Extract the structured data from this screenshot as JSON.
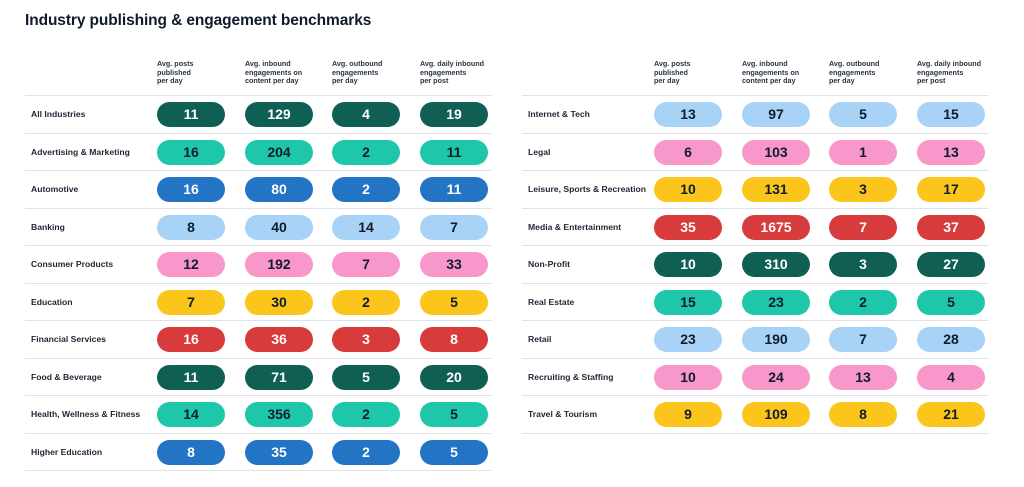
{
  "title": "Industry publishing & engagement benchmarks",
  "chart_data": {
    "type": "table",
    "title": "Industry publishing & engagement benchmarks",
    "columns": [
      "Avg. posts published per day",
      "Avg. inbound engagements on content per day",
      "Avg. outbound engagements per day",
      "Avg. daily inbound engagements per post"
    ],
    "column_lines": [
      [
        "Avg. posts",
        "published",
        "per day"
      ],
      [
        "Avg. inbound",
        "engagements on",
        "content per day"
      ],
      [
        "Avg. outbound",
        "engagements",
        "per day"
      ],
      [
        "Avg. daily inbound",
        "engagements",
        "per post"
      ]
    ],
    "colors": {
      "dark-green": {
        "bg": "#0f5f55",
        "fg": "#ffffff"
      },
      "teal": {
        "bg": "#1ec7aa",
        "fg": "#0f1d2b"
      },
      "blue": {
        "bg": "#2474c6",
        "fg": "#ffffff"
      },
      "light-blue": {
        "bg": "#a8d2f6",
        "fg": "#0f1d2b"
      },
      "pink": {
        "bg": "#f897c9",
        "fg": "#0f1d2b"
      },
      "yellow": {
        "bg": "#fcc51b",
        "fg": "#0f1d2b"
      },
      "red": {
        "bg": "#d83b3b",
        "fg": "#ffffff"
      }
    },
    "tables": [
      {
        "rows": [
          {
            "industry": "All Industries",
            "values": [
              11,
              129,
              4,
              19
            ],
            "color": "dark-green"
          },
          {
            "industry": "Advertising & Marketing",
            "values": [
              16,
              204,
              2,
              11
            ],
            "color": "teal"
          },
          {
            "industry": "Automotive",
            "values": [
              16,
              80,
              2,
              11
            ],
            "color": "blue"
          },
          {
            "industry": "Banking",
            "values": [
              8,
              40,
              14,
              7
            ],
            "color": "light-blue"
          },
          {
            "industry": "Consumer Products",
            "values": [
              12,
              192,
              7,
              33
            ],
            "color": "pink"
          },
          {
            "industry": "Education",
            "values": [
              7,
              30,
              2,
              5
            ],
            "color": "yellow"
          },
          {
            "industry": "Financial Services",
            "values": [
              16,
              36,
              3,
              8
            ],
            "color": "red"
          },
          {
            "industry": "Food & Beverage",
            "values": [
              11,
              71,
              5,
              20
            ],
            "color": "dark-green"
          },
          {
            "industry": "Health, Wellness & Fitness",
            "values": [
              14,
              356,
              2,
              5
            ],
            "color": "teal"
          },
          {
            "industry": "Higher Education",
            "values": [
              8,
              35,
              2,
              5
            ],
            "color": "blue"
          }
        ]
      },
      {
        "rows": [
          {
            "industry": "Internet & Tech",
            "values": [
              13,
              97,
              5,
              15
            ],
            "color": "light-blue"
          },
          {
            "industry": "Legal",
            "values": [
              6,
              103,
              1,
              13
            ],
            "color": "pink"
          },
          {
            "industry": "Leisure, Sports & Recreation",
            "values": [
              10,
              131,
              3,
              17
            ],
            "color": "yellow"
          },
          {
            "industry": "Media & Entertainment",
            "values": [
              35,
              1675,
              7,
              37
            ],
            "color": "red"
          },
          {
            "industry": "Non-Profit",
            "values": [
              10,
              310,
              3,
              27
            ],
            "color": "dark-green"
          },
          {
            "industry": "Real Estate",
            "values": [
              15,
              23,
              2,
              5
            ],
            "color": "teal"
          },
          {
            "industry": "Retail",
            "values": [
              23,
              190,
              7,
              28
            ],
            "color": "light-blue"
          },
          {
            "industry": "Recruiting & Staffing",
            "values": [
              10,
              24,
              13,
              4
            ],
            "color": "pink"
          },
          {
            "industry": "Travel & Tourism",
            "values": [
              9,
              109,
              8,
              21
            ],
            "color": "yellow"
          }
        ]
      }
    ]
  }
}
